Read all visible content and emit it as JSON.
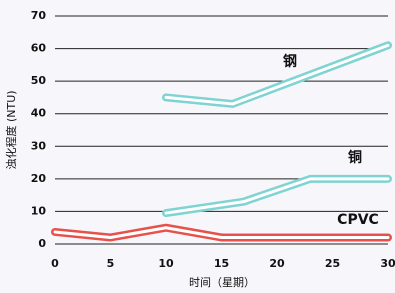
{
  "chart_data": {
    "type": "line",
    "xlabel": "时间（星期）",
    "ylabel": "浊化程度 (NTU)",
    "xlim": [
      0,
      30
    ],
    "xticks": [
      0,
      5,
      10,
      15,
      20,
      25,
      30
    ],
    "ylim": [
      0,
      70
    ],
    "yticks": [
      0,
      10,
      20,
      30,
      40,
      50,
      60,
      70
    ],
    "grid": true,
    "series": [
      {
        "name": "钢",
        "color": "#7fd3d3",
        "x": [
          10,
          16,
          30
        ],
        "values": [
          45,
          43,
          61
        ]
      },
      {
        "name": "铜",
        "color": "#7fd3d3",
        "x": [
          10,
          17,
          23,
          30
        ],
        "values": [
          9.5,
          13,
          20,
          20
        ]
      },
      {
        "name": "CPVC",
        "color": "#e8504a",
        "x": [
          0,
          5,
          10,
          15,
          30
        ],
        "values": [
          3.7,
          2,
          5,
          2,
          2
        ]
      }
    ]
  }
}
